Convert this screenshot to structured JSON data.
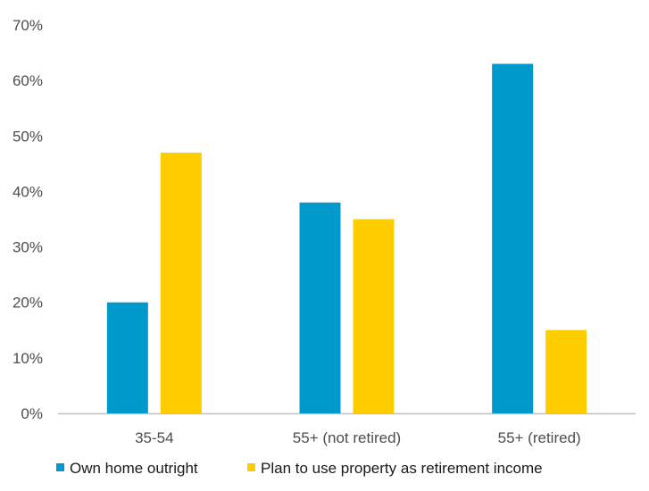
{
  "chart_data": {
    "type": "bar",
    "categories": [
      "35-54",
      "55+ (not retired)",
      "55+ (retired)"
    ],
    "series": [
      {
        "name": "Own home outright",
        "color": "#0099cc",
        "values": [
          20,
          38,
          63
        ]
      },
      {
        "name": "Plan to use property as retirement income",
        "color": "#ffcc00",
        "values": [
          47,
          35,
          15
        ]
      }
    ],
    "yticks": [
      "0%",
      "10%",
      "20%",
      "30%",
      "40%",
      "50%",
      "60%",
      "70%"
    ],
    "ylim": [
      0,
      70
    ],
    "grid": false,
    "legend_position": "bottom-left",
    "title": "",
    "xlabel": "",
    "ylabel": ""
  }
}
